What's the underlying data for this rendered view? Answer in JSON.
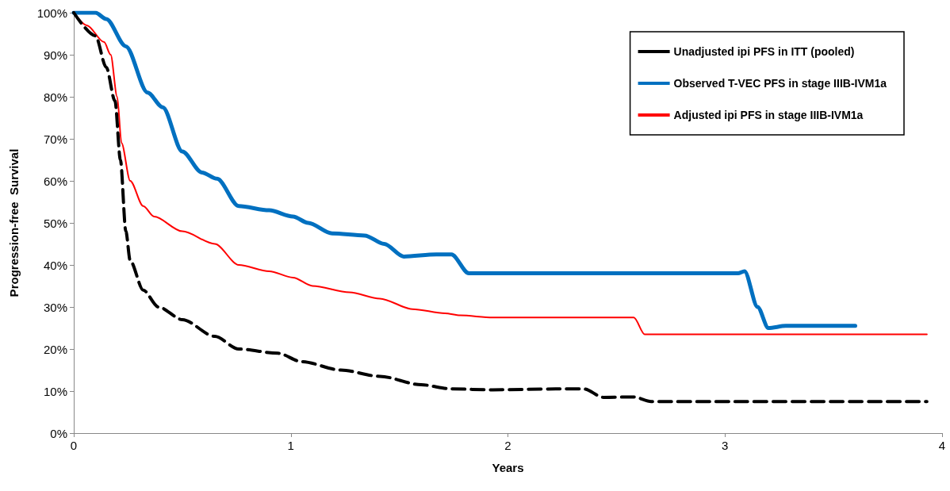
{
  "chart_data": {
    "type": "line",
    "xlabel": "Years",
    "ylabel": "Progression-free  Survival",
    "xlim": [
      0,
      4
    ],
    "xticks": [
      0,
      1,
      2,
      3,
      4
    ],
    "ylim": [
      0,
      100
    ],
    "yticks": [
      {
        "value": 0,
        "label": "0%"
      },
      {
        "value": 10,
        "label": "10%"
      },
      {
        "value": 20,
        "label": "20%"
      },
      {
        "value": 30,
        "label": "30%"
      },
      {
        "value": 40,
        "label": "40%"
      },
      {
        "value": 50,
        "label": "50%"
      },
      {
        "value": 60,
        "label": "60%"
      },
      {
        "value": 70,
        "label": "70%"
      },
      {
        "value": 80,
        "label": "80%"
      },
      {
        "value": 90,
        "label": "90%"
      },
      {
        "value": 100,
        "label": "100%"
      }
    ],
    "grid": false,
    "legend": "top right",
    "marker": "none",
    "series": [
      {
        "name": "Unadjusted ipi PFS in ITT (pooled)",
        "color": "#000000",
        "line_style": "dashed",
        "x": [
          0,
          0.1,
          0.15,
          0.19,
          0.215,
          0.24,
          0.26,
          0.32,
          0.39,
          0.5,
          0.65,
          0.76,
          0.94,
          1.05,
          1.23,
          1.41,
          1.6,
          1.74,
          1.93,
          2.22,
          2.35,
          2.44,
          2.58,
          2.66,
          3.93
        ],
        "values": [
          100,
          94.5,
          87,
          79,
          65,
          48,
          41,
          34,
          30,
          27,
          23,
          20,
          19,
          17,
          15,
          13.5,
          11.5,
          10.5,
          10.3,
          10.5,
          10.5,
          8.5,
          8.6,
          7.5,
          7.5
        ]
      },
      {
        "name": "Observed T-VEC PFS in stage IIIB-IVM1a",
        "color": "#0070c0",
        "line_style": "solid",
        "x": [
          0,
          0.1,
          0.15,
          0.24,
          0.34,
          0.41,
          0.5,
          0.59,
          0.66,
          0.76,
          0.9,
          1.01,
          1.08,
          1.19,
          1.34,
          1.43,
          1.52,
          1.67,
          1.74,
          1.82,
          1.93,
          3.06,
          3.09,
          3.15,
          3.2,
          3.28,
          3.6
        ],
        "values": [
          100,
          100,
          98.5,
          92,
          81,
          77.5,
          67,
          62,
          60.5,
          54,
          53,
          51.5,
          50,
          47.5,
          47,
          45,
          42,
          42.5,
          42.5,
          38,
          38,
          38,
          38.5,
          30,
          25,
          25.5,
          25.5
        ]
      },
      {
        "name": "Adjusted ipi PFS in stage IIIB-IVM1a",
        "color": "#ff0000",
        "line_style": "solid",
        "x": [
          0,
          0.06,
          0.14,
          0.17,
          0.2,
          0.22,
          0.26,
          0.32,
          0.37,
          0.5,
          0.65,
          0.76,
          0.9,
          1.01,
          1.1,
          1.27,
          1.41,
          1.56,
          1.71,
          1.78,
          1.93,
          2.51,
          2.58,
          2.63,
          2.69,
          3.93
        ],
        "values": [
          100,
          97,
          93,
          90,
          80,
          69,
          60,
          54,
          51.5,
          48,
          45,
          40,
          38.5,
          37,
          35,
          33.5,
          32,
          29.5,
          28.5,
          28,
          27.5,
          27.5,
          27.5,
          23.5,
          23.5,
          23.5
        ]
      }
    ]
  }
}
